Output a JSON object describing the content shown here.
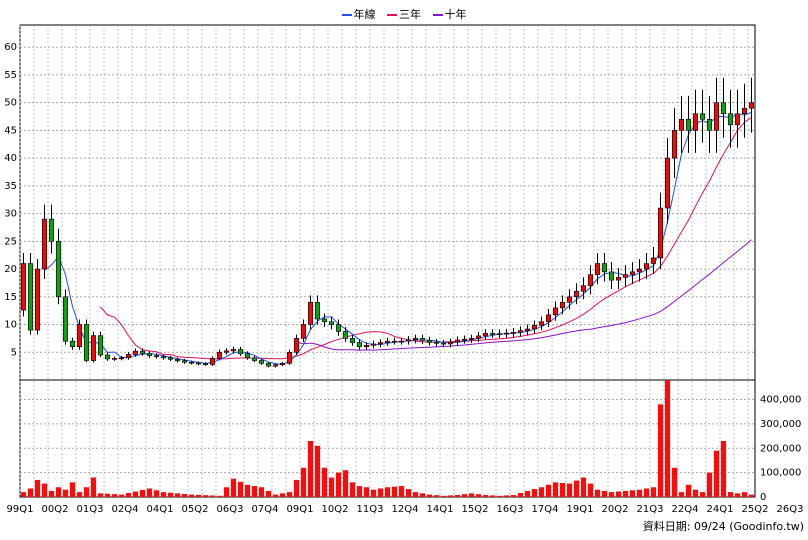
{
  "chart_data": {
    "type": "candlestick",
    "legend": [
      {
        "label": "年線",
        "color": "#1f4fe0"
      },
      {
        "label": "三年",
        "color": "#e0105a"
      },
      {
        "label": "十年",
        "color": "#8a12c8"
      }
    ],
    "price_axis": {
      "ylim": [
        0,
        64
      ],
      "ticks": [
        5,
        10,
        15,
        20,
        25,
        30,
        35,
        40,
        45,
        50,
        55,
        60
      ]
    },
    "volume_axis": {
      "ylim": [
        0,
        480000
      ],
      "ticks": [
        0,
        100000,
        200000,
        300000,
        400000
      ],
      "tick_labels": [
        "0",
        "100,000",
        "200,000",
        "300,000",
        "400,000"
      ]
    },
    "x_tick_labels": [
      "99Q1",
      "00Q2",
      "01Q3",
      "02Q4",
      "04Q1",
      "05Q2",
      "06Q3",
      "07Q4",
      "09Q1",
      "10Q2",
      "11Q3",
      "12Q4",
      "14Q1",
      "15Q2",
      "16Q3",
      "17Q4",
      "19Q1",
      "20Q2",
      "21Q3",
      "22Q4",
      "24Q1",
      "25Q2",
      "26Q3"
    ],
    "footer_text": "資料日期: 09/24  (Goodinfo.tw)",
    "colors": {
      "up": "#dd1111",
      "down": "#1a9a1a",
      "volume": "#ee1111",
      "grid": "#aaaaaa"
    },
    "close_anchors": [
      [
        0,
        21
      ],
      [
        1,
        9
      ],
      [
        2,
        20
      ],
      [
        3,
        29
      ],
      [
        4,
        25
      ],
      [
        5,
        15
      ],
      [
        6,
        7
      ],
      [
        7,
        6
      ],
      [
        8,
        10
      ],
      [
        9,
        3.5
      ],
      [
        10,
        8
      ],
      [
        11,
        4.5
      ],
      [
        12,
        3.8
      ],
      [
        14,
        4
      ],
      [
        16,
        5.2
      ],
      [
        18,
        4.4
      ],
      [
        20,
        4
      ],
      [
        23,
        3.2
      ],
      [
        26,
        2.8
      ],
      [
        28,
        5
      ],
      [
        30,
        5.5
      ],
      [
        32,
        4
      ],
      [
        35,
        2.5
      ],
      [
        37,
        3
      ],
      [
        38,
        5
      ],
      [
        40,
        10
      ],
      [
        41,
        14
      ],
      [
        42,
        11
      ],
      [
        44,
        10
      ],
      [
        46,
        7.5
      ],
      [
        48,
        6
      ],
      [
        50,
        6.5
      ],
      [
        52,
        7
      ],
      [
        54,
        7
      ],
      [
        56,
        7.5
      ],
      [
        58,
        6.8
      ],
      [
        60,
        6.5
      ],
      [
        62,
        7.2
      ],
      [
        64,
        7.5
      ],
      [
        66,
        8.4
      ],
      [
        68,
        8.3
      ],
      [
        70,
        8.6
      ],
      [
        72,
        9.2
      ],
      [
        74,
        10.5
      ],
      [
        76,
        13
      ],
      [
        78,
        15
      ],
      [
        80,
        17
      ],
      [
        82,
        21
      ],
      [
        84,
        18
      ],
      [
        86,
        19
      ],
      [
        88,
        20
      ],
      [
        90,
        22
      ],
      [
        92,
        40
      ],
      [
        93,
        45
      ],
      [
        94,
        47
      ],
      [
        95,
        45
      ],
      [
        96,
        48
      ],
      [
        97,
        47
      ],
      [
        98,
        45
      ],
      [
        99,
        50
      ],
      [
        100,
        48
      ],
      [
        101,
        46
      ],
      [
        102,
        48
      ],
      [
        103,
        49
      ],
      [
        104,
        50
      ]
    ],
    "volume_anchors": [
      [
        0,
        20000
      ],
      [
        1,
        35000
      ],
      [
        2,
        70000
      ],
      [
        3,
        55000
      ],
      [
        4,
        25000
      ],
      [
        5,
        40000
      ],
      [
        6,
        30000
      ],
      [
        7,
        60000
      ],
      [
        8,
        20000
      ],
      [
        9,
        40000
      ],
      [
        10,
        80000
      ],
      [
        11,
        15000
      ],
      [
        14,
        10000
      ],
      [
        18,
        35000
      ],
      [
        20,
        20000
      ],
      [
        24,
        10000
      ],
      [
        28,
        5000
      ],
      [
        30,
        75000
      ],
      [
        32,
        50000
      ],
      [
        34,
        40000
      ],
      [
        36,
        10000
      ],
      [
        38,
        20000
      ],
      [
        40,
        120000
      ],
      [
        41,
        230000
      ],
      [
        42,
        210000
      ],
      [
        43,
        120000
      ],
      [
        44,
        80000
      ],
      [
        45,
        100000
      ],
      [
        46,
        110000
      ],
      [
        47,
        60000
      ],
      [
        48,
        45000
      ],
      [
        49,
        40000
      ],
      [
        50,
        30000
      ],
      [
        52,
        40000
      ],
      [
        54,
        45000
      ],
      [
        56,
        20000
      ],
      [
        58,
        10000
      ],
      [
        60,
        5000
      ],
      [
        62,
        8000
      ],
      [
        64,
        15000
      ],
      [
        66,
        8000
      ],
      [
        68,
        5000
      ],
      [
        70,
        8000
      ],
      [
        72,
        25000
      ],
      [
        74,
        40000
      ],
      [
        76,
        60000
      ],
      [
        78,
        55000
      ],
      [
        80,
        80000
      ],
      [
        82,
        30000
      ],
      [
        84,
        20000
      ],
      [
        86,
        25000
      ],
      [
        88,
        30000
      ],
      [
        90,
        40000
      ],
      [
        91,
        380000
      ],
      [
        92,
        480000
      ],
      [
        93,
        120000
      ],
      [
        94,
        20000
      ],
      [
        95,
        50000
      ],
      [
        96,
        30000
      ],
      [
        97,
        20000
      ],
      [
        98,
        100000
      ],
      [
        99,
        190000
      ],
      [
        100,
        230000
      ],
      [
        101,
        20000
      ],
      [
        102,
        15000
      ],
      [
        103,
        20000
      ],
      [
        104,
        10000
      ]
    ]
  }
}
